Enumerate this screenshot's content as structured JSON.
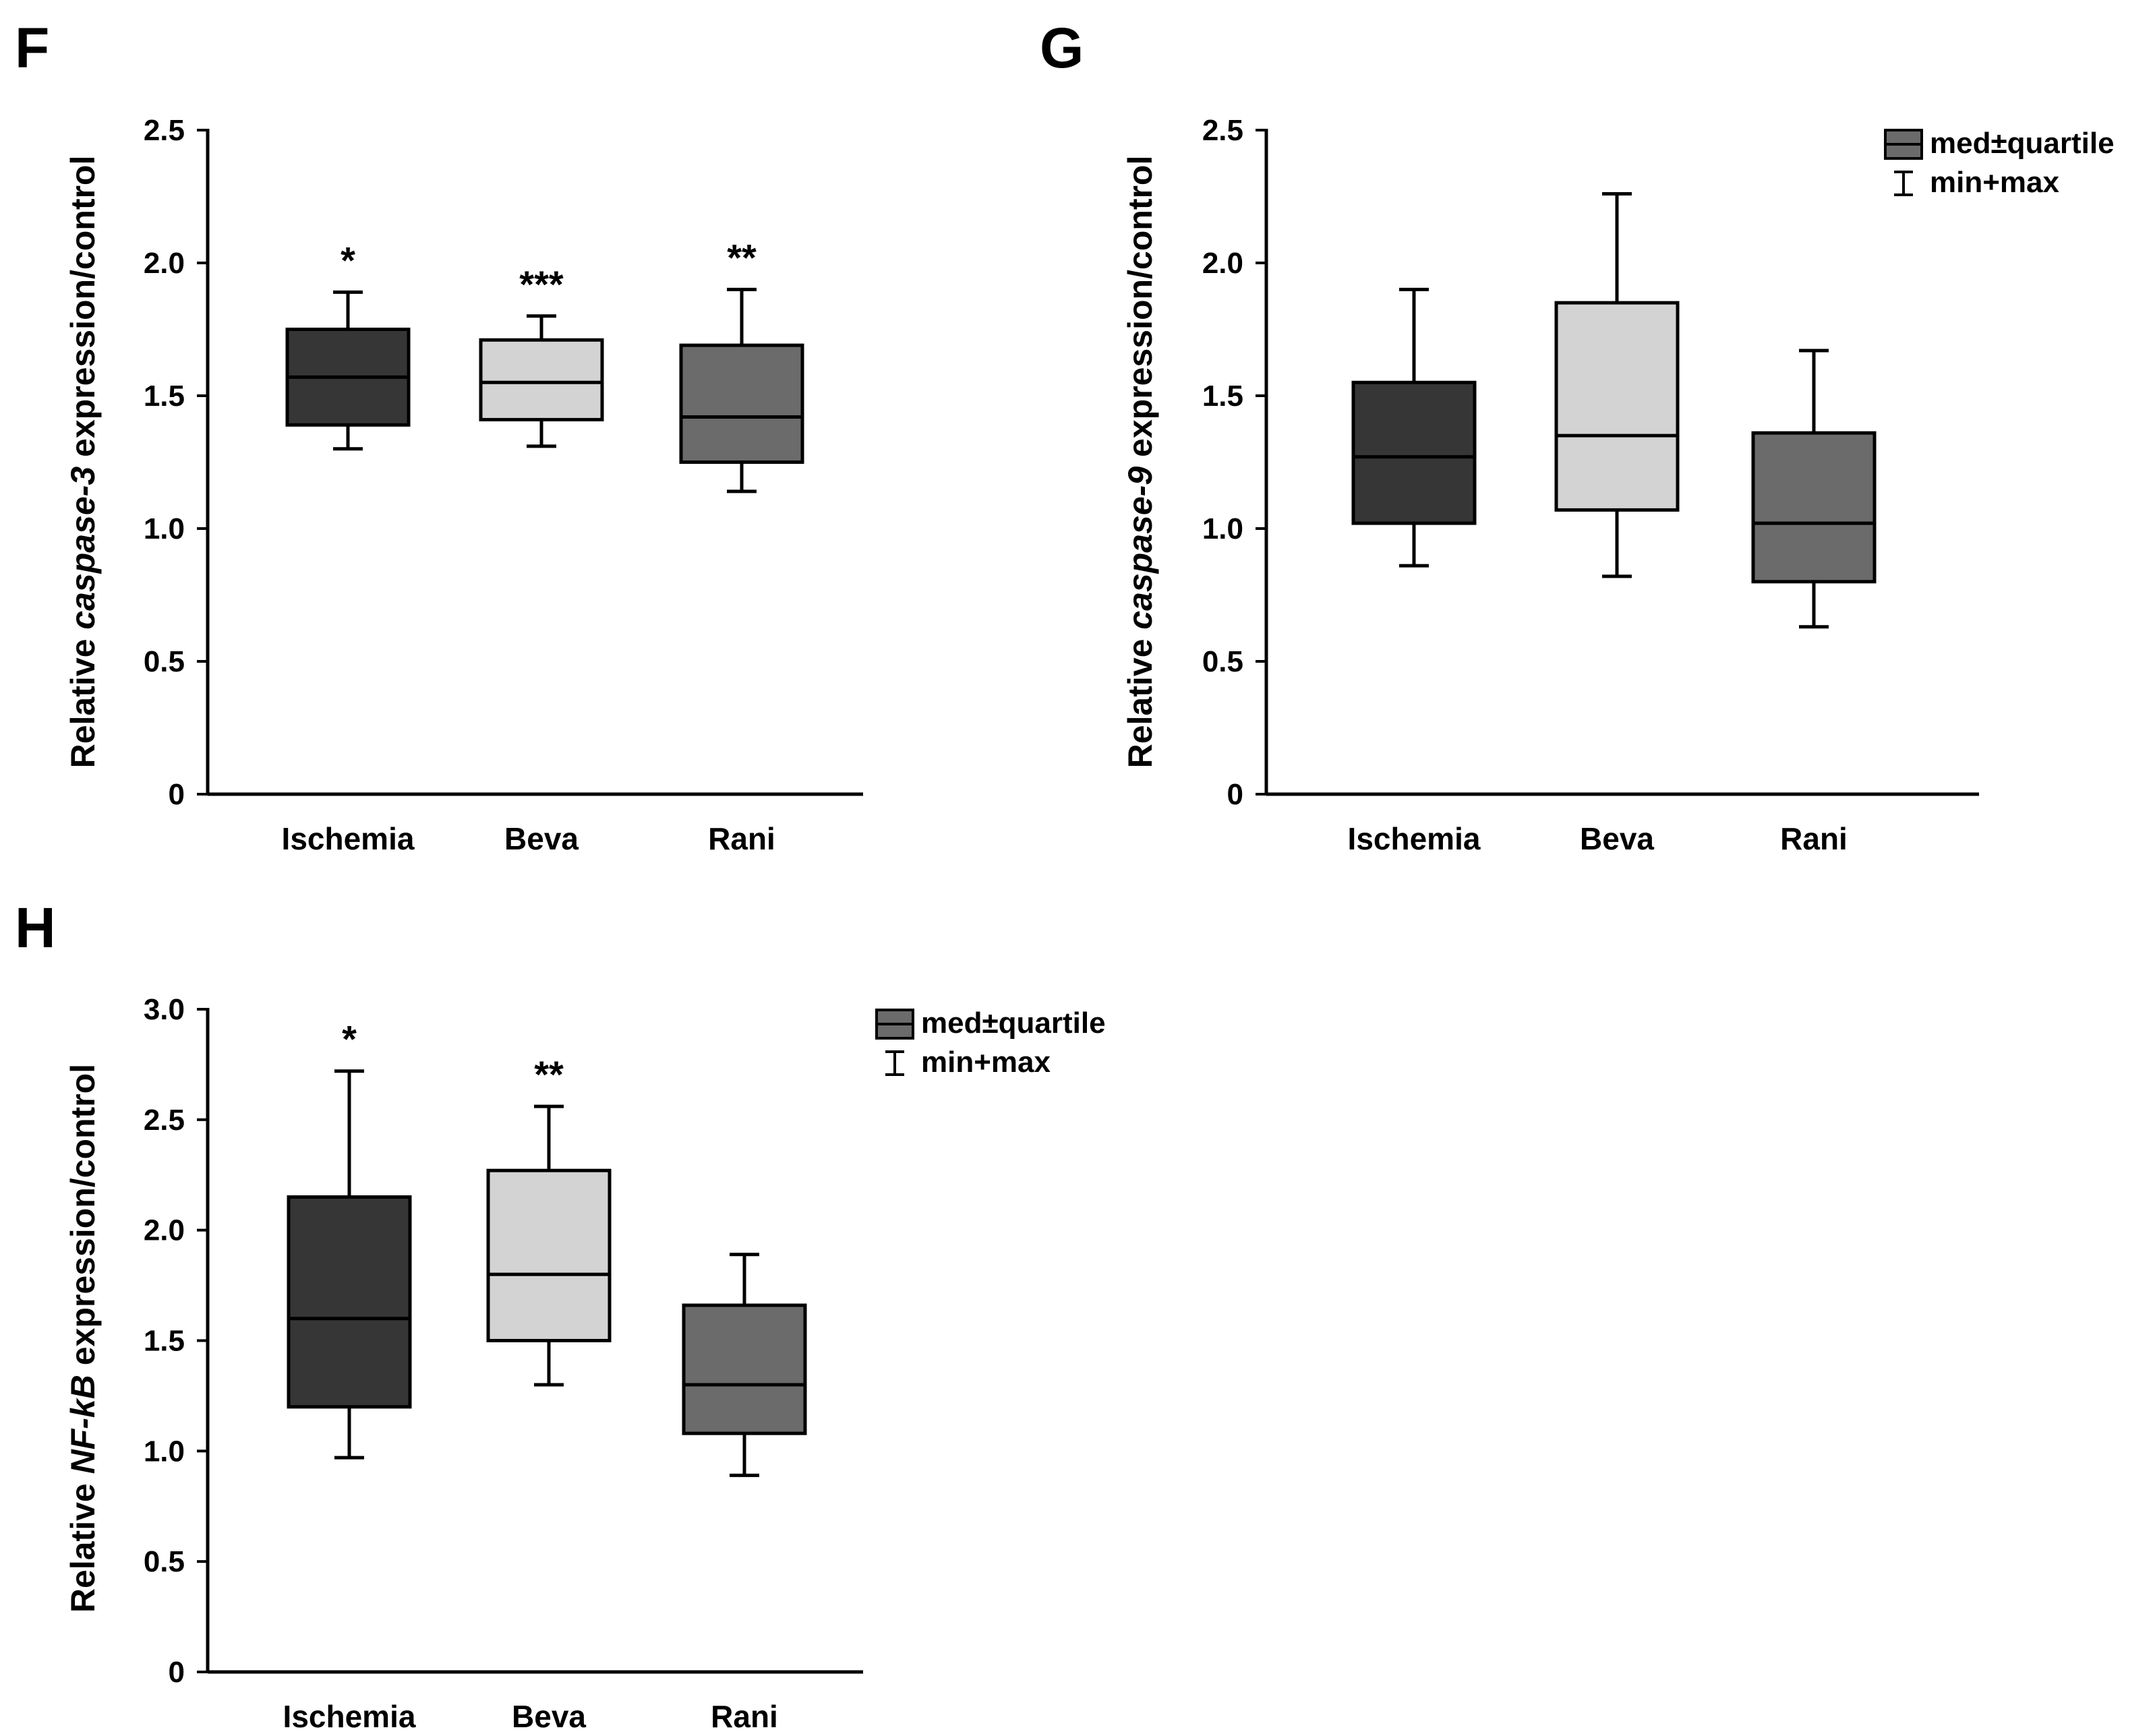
{
  "chart_data": [
    {
      "panel": "F",
      "type": "boxplot",
      "ylabel_parts": [
        "Relative ",
        "caspase-3",
        " expression/control"
      ],
      "ylim": [
        0,
        2.5
      ],
      "yticks": [
        "0",
        "0.5",
        "1.0",
        "1.5",
        "2.0",
        "2.5"
      ],
      "ytick_values": [
        0,
        0.5,
        1.0,
        1.5,
        2.0,
        2.5
      ],
      "categories": [
        "Ischemia",
        "Beva",
        "Rani"
      ],
      "boxes": [
        {
          "min": 1.3,
          "q1": 1.39,
          "median": 1.57,
          "q3": 1.75,
          "max": 1.89,
          "color": "#363636",
          "sig": "*"
        },
        {
          "min": 1.31,
          "q1": 1.41,
          "median": 1.55,
          "q3": 1.71,
          "max": 1.8,
          "color": "#d3d3d3",
          "sig": "***"
        },
        {
          "min": 1.14,
          "q1": 1.25,
          "median": 1.42,
          "q3": 1.69,
          "max": 1.9,
          "color": "#6b6b6b",
          "sig": "**"
        }
      ]
    },
    {
      "panel": "G",
      "type": "boxplot",
      "ylabel_parts": [
        "Relative ",
        "caspase-9",
        " expression/control"
      ],
      "ylim": [
        0,
        2.5
      ],
      "yticks": [
        "0",
        "0.5",
        "1.0",
        "1.5",
        "2.0",
        "2.5"
      ],
      "ytick_values": [
        0,
        0.5,
        1.0,
        1.5,
        2.0,
        2.5
      ],
      "categories": [
        "Ischemia",
        "Beva",
        "Rani"
      ],
      "legend": {
        "box_label": "med±quartile",
        "whisker_label": "min+max"
      },
      "boxes": [
        {
          "min": 0.86,
          "q1": 1.02,
          "median": 1.27,
          "q3": 1.55,
          "max": 1.9,
          "color": "#363636",
          "sig": ""
        },
        {
          "min": 0.82,
          "q1": 1.07,
          "median": 1.35,
          "q3": 1.85,
          "max": 2.26,
          "color": "#d3d3d3",
          "sig": ""
        },
        {
          "min": 0.63,
          "q1": 0.8,
          "median": 1.02,
          "q3": 1.36,
          "max": 1.67,
          "color": "#6b6b6b",
          "sig": ""
        }
      ]
    },
    {
      "panel": "H",
      "type": "boxplot",
      "ylabel_parts": [
        "Relative ",
        "NF-kB",
        " expression/control"
      ],
      "ylim": [
        0,
        3.0
      ],
      "yticks": [
        "0",
        "0.5",
        "1.0",
        "1.5",
        "2.0",
        "2.5",
        "3.0"
      ],
      "ytick_values": [
        0,
        0.5,
        1.0,
        1.5,
        2.0,
        2.5,
        3.0
      ],
      "categories": [
        "Ischemia",
        "Beva",
        "Rani"
      ],
      "legend": {
        "box_label": "med±quartile",
        "whisker_label": "min+max"
      },
      "boxes": [
        {
          "min": 0.97,
          "q1": 1.2,
          "median": 1.6,
          "q3": 2.15,
          "max": 2.72,
          "color": "#363636",
          "sig": "*"
        },
        {
          "min": 1.3,
          "q1": 1.5,
          "median": 1.8,
          "q3": 2.27,
          "max": 2.56,
          "color": "#d3d3d3",
          "sig": "**"
        },
        {
          "min": 0.89,
          "q1": 1.08,
          "median": 1.3,
          "q3": 1.66,
          "max": 1.89,
          "color": "#6b6b6b",
          "sig": ""
        }
      ]
    }
  ]
}
